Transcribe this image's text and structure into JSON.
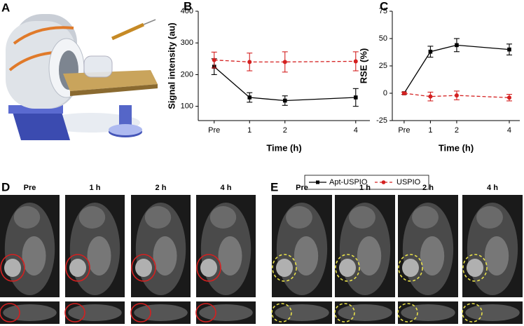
{
  "panel_labels": [
    "A",
    "B",
    "C",
    "D",
    "E"
  ],
  "mri": [
    {
      "times": [
        "Pre",
        "1 h",
        "2 h",
        "4 h"
      ],
      "marker_color": "#d42020"
    },
    {
      "times": [
        "Pre",
        "1 h",
        "2 h",
        "4 h"
      ],
      "marker_color": "#e8e04a"
    }
  ],
  "chart_data": [
    {
      "type": "line",
      "ylabel": "Signal intensity (au)",
      "xlabel": "Time (h)",
      "x": [
        0,
        1,
        2,
        4
      ],
      "xlim": [
        -0.45,
        4.4
      ],
      "xticks": [
        {
          "value": 0,
          "label": "Pre"
        },
        1,
        2,
        4
      ],
      "ylim": [
        55,
        400
      ],
      "yticks": [
        100,
        200,
        300,
        400
      ],
      "series": [
        {
          "name": "Apt-USPIO",
          "color": "#000000",
          "dash": false,
          "marker": "square",
          "values": [
            225,
            128,
            118,
            128
          ],
          "errors": [
            25,
            15,
            15,
            28
          ]
        },
        {
          "name": "USPIO",
          "color": "#d42020",
          "dash": true,
          "marker": "circle",
          "values": [
            246,
            240,
            240,
            242
          ],
          "errors": [
            25,
            28,
            32,
            30
          ]
        }
      ]
    },
    {
      "type": "line",
      "ylabel": "RSE (%)",
      "xlabel": "Time (h)",
      "x": [
        0,
        1,
        2,
        4
      ],
      "xlim": [
        -0.45,
        4.4
      ],
      "xticks": [
        {
          "value": 0,
          "label": "Pre"
        },
        1,
        2,
        4
      ],
      "ylim": [
        -25,
        75
      ],
      "yticks": [
        -25,
        0,
        25,
        50,
        75
      ],
      "series": [
        {
          "color": "#000000",
          "dash": false,
          "marker": "square",
          "values": [
            0,
            38,
            44,
            40
          ],
          "errors": [
            1,
            5,
            6,
            5
          ]
        },
        {
          "color": "#d42020",
          "dash": true,
          "marker": "circle",
          "values": [
            0,
            -3,
            -2,
            -4
          ],
          "errors": [
            1,
            4,
            4,
            3
          ]
        }
      ]
    }
  ]
}
